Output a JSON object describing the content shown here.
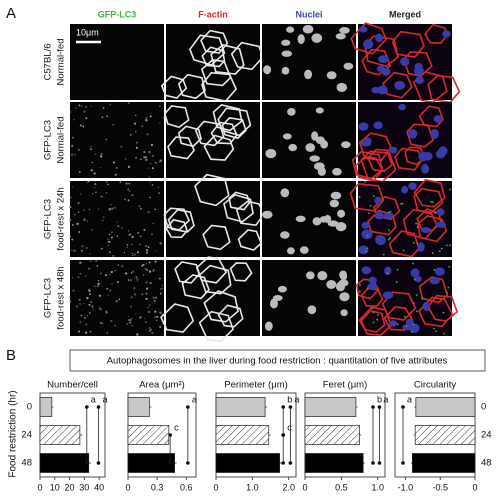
{
  "panel_a": {
    "label": "A",
    "column_headers": [
      "GFP-LC3",
      "F-actin",
      "Nuclei",
      "Merged"
    ],
    "header_colors": [
      "#3cb34a",
      "#d9232d",
      "#3c46a8",
      "#222222"
    ],
    "row_labels": [
      [
        "C57BL/6",
        "Normal-fed"
      ],
      [
        "GFP-LC3",
        "Normal-fed"
      ],
      [
        "GFP-LC3",
        "food-rest x 24h"
      ],
      [
        "GFP-LC3",
        "food-rest x 48h"
      ]
    ],
    "scale_bar": "10μm"
  },
  "panel_b": {
    "label": "B",
    "banner": "Autophagosomes in the liver during food restriction : quantitation of five attributes",
    "ylabel": "Food restriction (hr)",
    "categories": [
      "0",
      "24",
      "48"
    ],
    "fills": [
      "#c8c8c8",
      "hatch",
      "#000000"
    ]
  },
  "chart_data": [
    {
      "type": "bar",
      "title": "Number/cell",
      "values": [
        8,
        27,
        33
      ],
      "errors": [
        1,
        1.5,
        1.5
      ],
      "xlim": [
        0,
        44
      ],
      "xticks": [
        0,
        10,
        20,
        30,
        40
      ],
      "significance": [
        "a",
        "a"
      ]
    },
    {
      "type": "bar",
      "title": "Area (μm²)",
      "values": [
        0.22,
        0.42,
        0.48
      ],
      "errors": [
        0.02,
        0.02,
        0.02
      ],
      "xlim": [
        0,
        0.7
      ],
      "xticks": [
        0,
        0.3,
        0.6
      ],
      "significance": [
        "c",
        "a"
      ]
    },
    {
      "type": "bar",
      "title": "Perimeter (μm)",
      "values": [
        1.35,
        1.45,
        1.75
      ],
      "errors": [
        0.05,
        0.05,
        0.05
      ],
      "xlim": [
        0,
        2.2
      ],
      "xticks": [
        0,
        {
          "value": 1,
          "label": "1.0"
        },
        {
          "value": 2,
          "label": "2.0"
        }
      ],
      "significance": [
        "b",
        "c",
        "a"
      ]
    },
    {
      "type": "bar",
      "title": "Feret (μm)",
      "values": [
        0.7,
        0.75,
        0.8
      ],
      "errors": [
        0.02,
        0.02,
        0.02
      ],
      "xlim": [
        0,
        1.1
      ],
      "xticks": [
        0,
        0.5,
        {
          "value": 1,
          "label": "1.0"
        }
      ],
      "significance": [
        "b",
        "a"
      ]
    },
    {
      "type": "bar",
      "title": "Circularity",
      "values": [
        -0.85,
        -0.86,
        -0.9
      ],
      "errors": [
        0.02,
        0.02,
        0.02
      ],
      "xlim": [
        -1.15,
        0
      ],
      "xticks": [
        {
          "value": -1,
          "label": "-1.0"
        },
        {
          "value": -0.5,
          "label": "-0.5"
        },
        0
      ],
      "significance": [
        "a"
      ]
    }
  ]
}
